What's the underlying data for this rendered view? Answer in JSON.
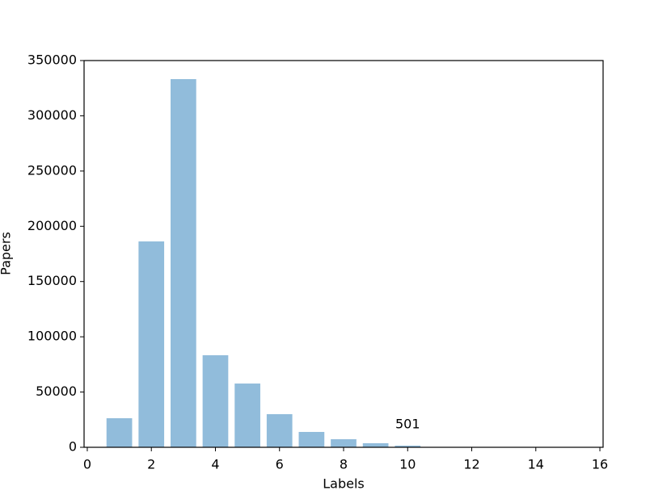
{
  "chart_data": {
    "type": "bar",
    "x": [
      1,
      2,
      3,
      4,
      5,
      6,
      7,
      8,
      9,
      10
    ],
    "values": [
      26300,
      186300,
      333200,
      83300,
      57700,
      30000,
      13900,
      7300,
      3700,
      1500
    ],
    "color": "#91bcdb",
    "x_label": "Labels",
    "y_label": "Papers",
    "annotations": [
      "501"
    ],
    "xlim": [
      -0.1,
      16.1
    ],
    "xticks": [
      0,
      2,
      4,
      6,
      8,
      10,
      12,
      14,
      16
    ],
    "ylim": [
      0,
      350000
    ],
    "yticks": [
      0,
      50000,
      100000,
      150000,
      200000,
      250000,
      300000,
      350000
    ],
    "grid": false
  }
}
